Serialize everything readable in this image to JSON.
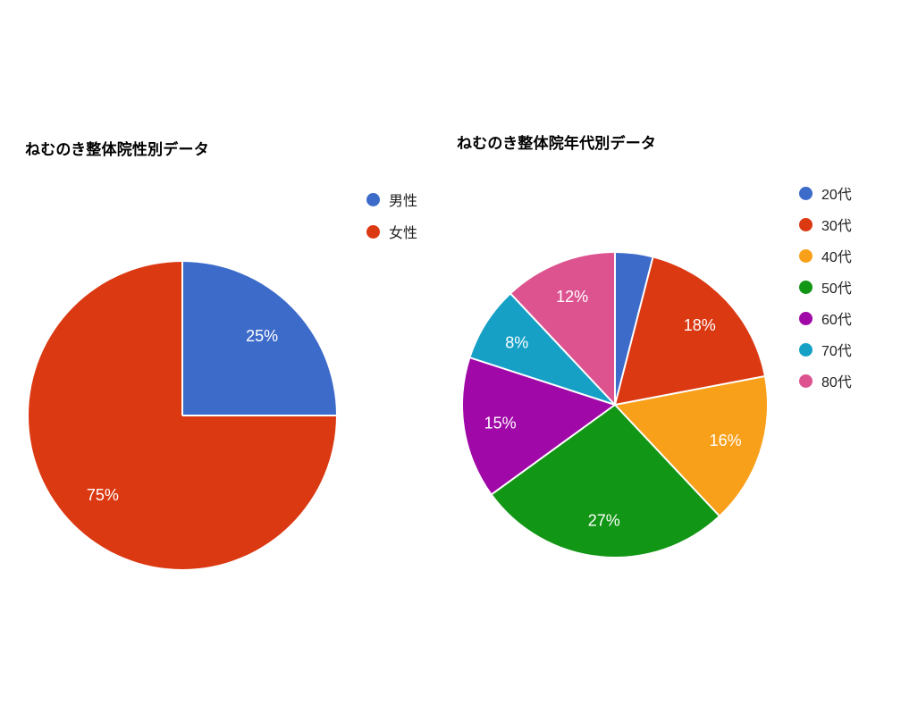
{
  "page": {
    "background": "#ffffff"
  },
  "chart_data": [
    {
      "type": "pie",
      "title": "ねむのき整体院性別データ",
      "categories": [
        "男性",
        "女性"
      ],
      "values": [
        25,
        75
      ],
      "value_unit": "percent",
      "slice_labels": [
        "25%",
        "75%"
      ],
      "colors": [
        "#3D6BCA",
        "#DB3912"
      ],
      "label_color": "#ffffff",
      "legend_position": "right",
      "start_angle_deg": 0,
      "direction": "clockwise"
    },
    {
      "type": "pie",
      "title": "ねむのき整体院年代別データ",
      "categories": [
        "20代",
        "30代",
        "40代",
        "50代",
        "60代",
        "70代",
        "80代"
      ],
      "values": [
        4,
        18,
        16,
        27,
        15,
        8,
        12
      ],
      "value_unit": "percent",
      "slice_labels": [
        "",
        "18%",
        "16%",
        "27%",
        "15%",
        "8%",
        "12%"
      ],
      "colors": [
        "#3D6BCA",
        "#DB3912",
        "#F9A01B",
        "#129615",
        "#A008A8",
        "#16A0C6",
        "#DC5390"
      ],
      "label_color": "#ffffff",
      "legend_position": "right",
      "start_angle_deg": 0,
      "direction": "clockwise"
    }
  ]
}
